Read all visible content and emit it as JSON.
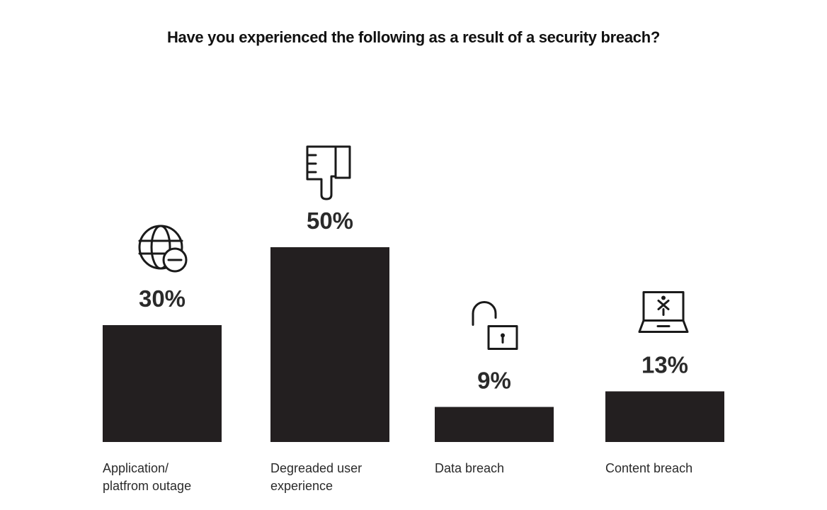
{
  "chart_data": {
    "type": "bar",
    "title": "Have you experienced the following as a result of a security breach?",
    "categories": [
      [
        "Application/",
        "platfrom outage"
      ],
      [
        "Degreaded user",
        "experience"
      ],
      [
        "Data breach"
      ],
      [
        "Content breach"
      ]
    ],
    "values": [
      30,
      50,
      9,
      13
    ],
    "value_labels": [
      "30%",
      "50%",
      "9%",
      "13%"
    ],
    "icons": [
      "globe-minus-icon",
      "thumbs-down-icon",
      "unlocked-padlock-icon",
      "laptop-alert-icon"
    ],
    "ylim": [
      0,
      60
    ],
    "grid": false,
    "legend": "none"
  },
  "colors": {
    "bar": "#231f20",
    "text": "#2a2a2a",
    "background": "#ffffff"
  }
}
